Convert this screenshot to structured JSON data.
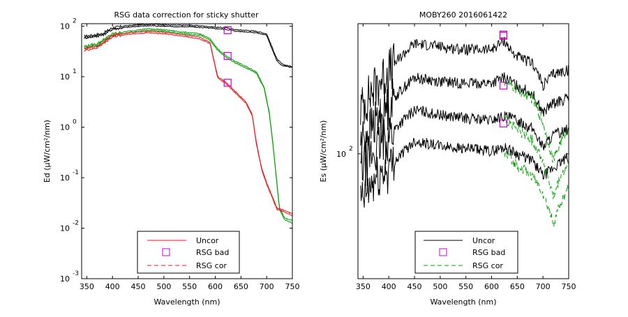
{
  "chart_data": [
    {
      "type": "line",
      "title": "RSG data correction for sticky shutter",
      "xlabel": "Wavelength (nm)",
      "ylabel": "Ed (μW/cm²/nm)",
      "xlim": [
        340,
        750
      ],
      "y_scale": "log",
      "ylim_log10": [
        -3.0,
        2.05
      ],
      "x_ticks": [
        "350",
        "400",
        "450",
        "500",
        "550",
        "600",
        "650",
        "700",
        "750"
      ],
      "y_ticks": [
        {
          "base": "10",
          "exp": "2"
        },
        {
          "base": "10",
          "exp": "1"
        },
        {
          "base": "10",
          "exp": "0"
        },
        {
          "base": "10",
          "exp": "-1"
        },
        {
          "base": "10",
          "exp": "-2"
        },
        {
          "base": "10",
          "exp": "-3"
        }
      ],
      "legend_position": "bottom-center",
      "legend": [
        {
          "label": "Uncor",
          "style": "solid",
          "color": "#e41a1c"
        },
        {
          "label": "RSG bad",
          "style": "marker-square",
          "color": "#cc00cc"
        },
        {
          "label": "RSG cor",
          "style": "dashed",
          "color": "#e41a1c"
        }
      ],
      "series": [
        {
          "color": "#000000",
          "style": "solid",
          "log10_values": [
            [
              345,
              1.8
            ],
            [
              360,
              1.82
            ],
            [
              380,
              1.85
            ],
            [
              400,
              1.97
            ],
            [
              420,
              2.0
            ],
            [
              450,
              2.03
            ],
            [
              480,
              2.04
            ],
            [
              500,
              2.03
            ],
            [
              520,
              2.02
            ],
            [
              550,
              2.02
            ],
            [
              580,
              2.0
            ],
            [
              600,
              1.98
            ],
            [
              620,
              1.97
            ],
            [
              640,
              1.93
            ],
            [
              660,
              1.92
            ],
            [
              680,
              1.9
            ],
            [
              700,
              1.85
            ],
            [
              710,
              1.6
            ],
            [
              720,
              1.35
            ],
            [
              730,
              1.25
            ],
            [
              740,
              1.22
            ],
            [
              750,
              1.2
            ]
          ]
        },
        {
          "color": "#000000",
          "style": "solid",
          "log10_values": [
            [
              345,
              1.77
            ],
            [
              360,
              1.79
            ],
            [
              380,
              1.82
            ],
            [
              400,
              1.94
            ],
            [
              420,
              1.97
            ],
            [
              450,
              2.0
            ],
            [
              480,
              2.01
            ],
            [
              500,
              2.0
            ],
            [
              520,
              1.99
            ],
            [
              550,
              1.99
            ],
            [
              580,
              1.97
            ],
            [
              600,
              1.95
            ],
            [
              620,
              1.94
            ],
            [
              640,
              1.9
            ],
            [
              660,
              1.89
            ],
            [
              680,
              1.87
            ],
            [
              700,
              1.82
            ],
            [
              710,
              1.56
            ],
            [
              720,
              1.31
            ],
            [
              730,
              1.22
            ],
            [
              740,
              1.2
            ],
            [
              750,
              1.18
            ]
          ]
        },
        {
          "color": "#00a000",
          "style": "solid",
          "log10_values": [
            [
              345,
              1.6
            ],
            [
              370,
              1.65
            ],
            [
              400,
              1.85
            ],
            [
              430,
              1.9
            ],
            [
              470,
              1.95
            ],
            [
              500,
              1.93
            ],
            [
              540,
              1.88
            ],
            [
              570,
              1.85
            ],
            [
              590,
              1.75
            ],
            [
              605,
              1.55
            ],
            [
              620,
              1.42
            ],
            [
              640,
              1.3
            ],
            [
              660,
              1.2
            ],
            [
              680,
              1.1
            ],
            [
              695,
              0.8
            ],
            [
              705,
              0.3
            ],
            [
              712,
              -0.3
            ],
            [
              718,
              -0.9
            ],
            [
              725,
              -1.6
            ],
            [
              735,
              -1.8
            ],
            [
              750,
              -1.85
            ]
          ]
        },
        {
          "color": "#00a000",
          "style": "solid",
          "log10_values": [
            [
              345,
              1.57
            ],
            [
              370,
              1.62
            ],
            [
              400,
              1.82
            ],
            [
              430,
              1.87
            ],
            [
              470,
              1.92
            ],
            [
              500,
              1.9
            ],
            [
              540,
              1.85
            ],
            [
              570,
              1.82
            ],
            [
              590,
              1.72
            ],
            [
              605,
              1.52
            ],
            [
              620,
              1.39
            ],
            [
              640,
              1.27
            ],
            [
              660,
              1.17
            ],
            [
              680,
              1.07
            ],
            [
              695,
              0.77
            ],
            [
              705,
              0.27
            ],
            [
              712,
              -0.33
            ],
            [
              718,
              -0.93
            ],
            [
              725,
              -1.63
            ],
            [
              735,
              -1.83
            ],
            [
              750,
              -1.9
            ]
          ]
        },
        {
          "color": "#e41a1c",
          "style": "solid",
          "log10_values": [
            [
              345,
              1.55
            ],
            [
              370,
              1.6
            ],
            [
              400,
              1.82
            ],
            [
              430,
              1.87
            ],
            [
              470,
              1.9
            ],
            [
              500,
              1.88
            ],
            [
              540,
              1.83
            ],
            [
              570,
              1.78
            ],
            [
              590,
              1.68
            ],
            [
              597,
              1.35
            ],
            [
              605,
              1.0
            ],
            [
              620,
              0.9
            ],
            [
              640,
              0.7
            ],
            [
              660,
              0.5
            ],
            [
              672,
              0.25
            ],
            [
              680,
              -0.3
            ],
            [
              690,
              -0.8
            ],
            [
              700,
              -1.1
            ],
            [
              710,
              -1.35
            ],
            [
              720,
              -1.6
            ],
            [
              735,
              -1.65
            ],
            [
              750,
              -1.72
            ]
          ]
        },
        {
          "color": "#e41a1c",
          "style": "solid",
          "log10_values": [
            [
              345,
              1.52
            ],
            [
              370,
              1.57
            ],
            [
              400,
              1.79
            ],
            [
              430,
              1.84
            ],
            [
              470,
              1.87
            ],
            [
              500,
              1.85
            ],
            [
              540,
              1.8
            ],
            [
              570,
              1.75
            ],
            [
              590,
              1.65
            ],
            [
              597,
              1.32
            ],
            [
              605,
              0.97
            ],
            [
              620,
              0.87
            ],
            [
              640,
              0.67
            ],
            [
              660,
              0.47
            ],
            [
              672,
              0.22
            ],
            [
              680,
              -0.33
            ],
            [
              690,
              -0.83
            ],
            [
              700,
              -1.13
            ],
            [
              710,
              -1.38
            ],
            [
              720,
              -1.63
            ],
            [
              735,
              -1.68
            ],
            [
              750,
              -1.75
            ]
          ]
        }
      ],
      "rsg_bad_points": [
        [
          624,
          1.92
        ],
        [
          624,
          1.41
        ],
        [
          624,
          0.88
        ]
      ]
    },
    {
      "type": "line",
      "title": "MOBY260  2016061422",
      "xlabel": "Wavelength (nm)",
      "ylabel": "Es (μW/cm²/nm)",
      "xlim": [
        340,
        750
      ],
      "y_scale": "log",
      "ylim": [
        40,
        260
      ],
      "x_ticks": [
        "350",
        "400",
        "450",
        "500",
        "550",
        "600",
        "650",
        "700",
        "750"
      ],
      "y_ticks": [
        {
          "base": "10",
          "exp": "2"
        }
      ],
      "legend_position": "bottom-center",
      "legend": [
        {
          "label": "Uncor",
          "style": "solid",
          "color": "#000000"
        },
        {
          "label": "RSG bad",
          "style": "marker-square",
          "color": "#cc00cc"
        },
        {
          "label": "RSG cor",
          "style": "dashed",
          "color": "#00a000"
        }
      ],
      "series": [
        {
          "color": "#000000",
          "style": "solid",
          "values": [
            [
              345,
              140
            ],
            [
              380,
              170
            ],
            [
              400,
              185
            ],
            [
              450,
              225
            ],
            [
              500,
              220
            ],
            [
              550,
              215
            ],
            [
              600,
              215
            ],
            [
              625,
              230
            ],
            [
              640,
              210
            ],
            [
              660,
              200
            ],
            [
              680,
              195
            ],
            [
              700,
              165
            ],
            [
              720,
              180
            ],
            [
              750,
              185
            ]
          ]
        },
        {
          "color": "#000000",
          "style": "solid",
          "values": [
            [
              345,
              110
            ],
            [
              380,
              130
            ],
            [
              400,
              145
            ],
            [
              450,
              175
            ],
            [
              500,
              170
            ],
            [
              550,
              168
            ],
            [
              600,
              168
            ],
            [
              625,
              175
            ],
            [
              650,
              165
            ],
            [
              680,
              155
            ],
            [
              700,
              135
            ],
            [
              720,
              145
            ],
            [
              750,
              150
            ]
          ]
        },
        {
          "color": "#000000",
          "style": "solid",
          "values": [
            [
              345,
              90
            ],
            [
              380,
              105
            ],
            [
              400,
              115
            ],
            [
              450,
              138
            ],
            [
              500,
              133
            ],
            [
              550,
              130
            ],
            [
              600,
              128
            ],
            [
              625,
              132
            ],
            [
              650,
              128
            ],
            [
              680,
              120
            ],
            [
              700,
              105
            ],
            [
              720,
              115
            ],
            [
              750,
              120
            ]
          ]
        },
        {
          "color": "#000000",
          "style": "solid",
          "values": [
            [
              345,
              70
            ],
            [
              380,
              85
            ],
            [
              400,
              90
            ],
            [
              450,
              110
            ],
            [
              500,
              106
            ],
            [
              550,
              104
            ],
            [
              600,
              102
            ],
            [
              625,
              105
            ],
            [
              650,
              100
            ],
            [
              680,
              95
            ],
            [
              700,
              85
            ],
            [
              720,
              90
            ],
            [
              750,
              98
            ]
          ]
        },
        {
          "color": "#00a000",
          "style": "dashed",
          "values": [
            [
              625,
              170
            ],
            [
              650,
              160
            ],
            [
              680,
              150
            ],
            [
              700,
              125
            ],
            [
              720,
              95
            ],
            [
              735,
              110
            ],
            [
              750,
              120
            ]
          ]
        },
        {
          "color": "#00a000",
          "style": "dashed",
          "values": [
            [
              625,
              130
            ],
            [
              650,
              120
            ],
            [
              680,
              110
            ],
            [
              700,
              95
            ],
            [
              720,
              72
            ],
            [
              735,
              85
            ],
            [
              750,
              92
            ]
          ]
        },
        {
          "color": "#00a000",
          "style": "dashed",
          "values": [
            [
              625,
              100
            ],
            [
              650,
              92
            ],
            [
              680,
              85
            ],
            [
              700,
              75
            ],
            [
              720,
              60
            ],
            [
              735,
              70
            ],
            [
              750,
              78
            ]
          ]
        }
      ],
      "rsg_bad_points": [
        [
          623,
          240
        ],
        [
          623,
          238
        ],
        [
          623,
          165
        ],
        [
          623,
          125
        ]
      ]
    }
  ]
}
